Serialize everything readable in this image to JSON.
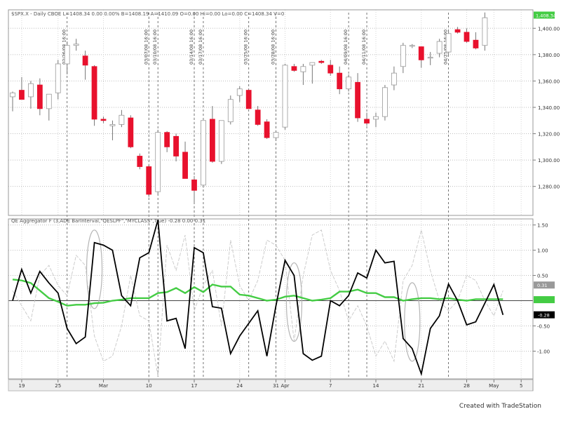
{
  "window": {
    "price_header": "$SPX.X - Daily  CBOE  L=1408.34  0.00  0.00%  B=1408.19  A=1410.09  O=0.00  Hi=0.00  Lo=0.00  C=1408.34  V=0",
    "indicator_header": "QE Aggregator F (3,ADE BarInterval,\"QESLPF\",\"MYCLASS\",True)  -0.28  0.00  0.31",
    "credit": "Created with TradeStation"
  },
  "colors": {
    "up_candle_fill": "#ffffff",
    "up_candle_stroke": "#999999",
    "down_candle_fill": "#e8112d",
    "wick": "#777777",
    "aggregator_line": "#000000",
    "smooth_line": "#44cc44",
    "ghost_line": "#c8c8c8",
    "zero_line": "#444444",
    "price_badge": "#44cc44",
    "value_badge": "#000000"
  },
  "chart_data": [
    {
      "type": "candlestick",
      "title": "$SPX.X - Daily",
      "y_ticks": [
        1400,
        1380,
        1360,
        1340,
        1320,
        1300,
        1280
      ],
      "y_tick_labels": [
        "1,400.00",
        "1,380.00",
        "1,360.00",
        "1,340.00",
        "1,320.00",
        "1,300.00",
        "1,280.00"
      ],
      "ylim": [
        1258,
        1414
      ],
      "last_price_label": "1,408.34",
      "bars": [
        {
          "o": 1348,
          "h": 1352,
          "l": 1337,
          "c": 1351
        },
        {
          "o": 1353,
          "h": 1363,
          "l": 1346,
          "c": 1346
        },
        {
          "o": 1348,
          "h": 1360,
          "l": 1339,
          "c": 1358
        },
        {
          "o": 1357,
          "h": 1362,
          "l": 1334,
          "c": 1339
        },
        {
          "o": 1339,
          "h": 1350,
          "l": 1330,
          "c": 1350
        },
        {
          "o": 1351,
          "h": 1376,
          "l": 1346,
          "c": 1373
        },
        {
          "o": 1373,
          "h": 1390,
          "l": 1365,
          "c": 1387
        },
        {
          "o": 1387,
          "h": 1392,
          "l": 1383,
          "c": 1388
        },
        {
          "o": 1379,
          "h": 1383,
          "l": 1361,
          "c": 1372
        },
        {
          "o": 1371,
          "h": 1372,
          "l": 1326,
          "c": 1331
        },
        {
          "o": 1331,
          "h": 1333,
          "l": 1328,
          "c": 1330
        },
        {
          "o": 1326,
          "h": 1330,
          "l": 1315,
          "c": 1327
        },
        {
          "o": 1327,
          "h": 1338,
          "l": 1325,
          "c": 1334
        },
        {
          "o": 1332,
          "h": 1334,
          "l": 1309,
          "c": 1310
        },
        {
          "o": 1303,
          "h": 1305,
          "l": 1293,
          "c": 1295
        },
        {
          "o": 1295,
          "h": 1296,
          "l": 1272,
          "c": 1274
        },
        {
          "o": 1276,
          "h": 1323,
          "l": 1274,
          "c": 1321
        },
        {
          "o": 1321,
          "h": 1322,
          "l": 1306,
          "c": 1310
        },
        {
          "o": 1318,
          "h": 1320,
          "l": 1299,
          "c": 1303
        },
        {
          "o": 1306,
          "h": 1314,
          "l": 1286,
          "c": 1286
        },
        {
          "o": 1285,
          "h": 1288,
          "l": 1267,
          "c": 1277
        },
        {
          "o": 1281,
          "h": 1330,
          "l": 1279,
          "c": 1330
        },
        {
          "o": 1331,
          "h": 1341,
          "l": 1298,
          "c": 1299
        },
        {
          "o": 1299,
          "h": 1330,
          "l": 1297,
          "c": 1330
        },
        {
          "o": 1329,
          "h": 1349,
          "l": 1327,
          "c": 1346
        },
        {
          "o": 1349,
          "h": 1356,
          "l": 1344,
          "c": 1354
        },
        {
          "o": 1353,
          "h": 1353,
          "l": 1339,
          "c": 1339
        },
        {
          "o": 1338,
          "h": 1341,
          "l": 1326,
          "c": 1327
        },
        {
          "o": 1329,
          "h": 1331,
          "l": 1316,
          "c": 1317
        },
        {
          "o": 1317,
          "h": 1322,
          "l": 1315,
          "c": 1321
        },
        {
          "o": 1325,
          "h": 1373,
          "l": 1323,
          "c": 1372
        },
        {
          "o": 1371,
          "h": 1373,
          "l": 1367,
          "c": 1368
        },
        {
          "o": 1367,
          "h": 1373,
          "l": 1357,
          "c": 1371
        },
        {
          "o": 1372,
          "h": 1374,
          "l": 1358,
          "c": 1374
        },
        {
          "o": 1375,
          "h": 1376,
          "l": 1373,
          "c": 1374
        },
        {
          "o": 1372,
          "h": 1376,
          "l": 1364,
          "c": 1366
        },
        {
          "o": 1366,
          "h": 1371,
          "l": 1350,
          "c": 1354
        },
        {
          "o": 1354,
          "h": 1365,
          "l": 1352,
          "c": 1363
        },
        {
          "o": 1359,
          "h": 1366,
          "l": 1329,
          "c": 1332
        },
        {
          "o": 1331,
          "h": 1336,
          "l": 1326,
          "c": 1328
        },
        {
          "o": 1331,
          "h": 1336,
          "l": 1325,
          "c": 1333
        },
        {
          "o": 1333,
          "h": 1357,
          "l": 1330,
          "c": 1355
        },
        {
          "o": 1357,
          "h": 1371,
          "l": 1353,
          "c": 1366
        },
        {
          "o": 1371,
          "h": 1389,
          "l": 1366,
          "c": 1387
        },
        {
          "o": 1387,
          "h": 1388,
          "l": 1385,
          "c": 1387
        },
        {
          "o": 1386,
          "h": 1386,
          "l": 1370,
          "c": 1376
        },
        {
          "o": 1378,
          "h": 1382,
          "l": 1372,
          "c": 1378
        },
        {
          "o": 1381,
          "h": 1392,
          "l": 1378,
          "c": 1390
        },
        {
          "o": 1382,
          "h": 1398,
          "l": 1379,
          "c": 1396
        },
        {
          "o": 1399,
          "h": 1401,
          "l": 1396,
          "c": 1397
        },
        {
          "o": 1397,
          "h": 1400,
          "l": 1389,
          "c": 1390
        },
        {
          "o": 1391,
          "h": 1397,
          "l": 1384,
          "c": 1385
        },
        {
          "o": 1387,
          "h": 1412,
          "l": 1383,
          "c": 1408
        }
      ],
      "event_markers": [
        {
          "bar": 6,
          "label": "02/26/08 16:00"
        },
        {
          "bar": 15,
          "label": "03/07/08 16:00"
        },
        {
          "bar": 16,
          "label": "03/10/08 16:00"
        },
        {
          "bar": 20,
          "label": "03/14/08 16:00"
        },
        {
          "bar": 21,
          "label": "03/17/08 16:00"
        },
        {
          "bar": 26,
          "label": "03/25/08 16:00"
        },
        {
          "bar": 29,
          "label": "03/28/08 16:00"
        },
        {
          "bar": 37,
          "label": "04/09/08 16:00"
        },
        {
          "bar": 39,
          "label": "04/11/08 16:00"
        },
        {
          "bar": 48,
          "label": "04/25/08 16:00"
        }
      ]
    },
    {
      "type": "line",
      "title": "QE Aggregator F (3,ADE BarInterval,\"QESLPF\",\"MYCLASS\",True)",
      "y_ticks": [
        1.5,
        1.0,
        0.5,
        -0.5,
        -1.0
      ],
      "y_tick_labels": [
        "1.50",
        "1.00",
        "0.50",
        "-0.50",
        "-1.00"
      ],
      "ylim": [
        -1.55,
        1.62
      ],
      "value_labels": [
        "0.31",
        "0.00",
        "-0.28"
      ],
      "x_ticks": [
        {
          "bar": 1,
          "label": "19"
        },
        {
          "bar": 5,
          "label": "25"
        },
        {
          "bar": 10,
          "label": "Mar"
        },
        {
          "bar": 15,
          "label": "10"
        },
        {
          "bar": 20,
          "label": "17"
        },
        {
          "bar": 25,
          "label": "24"
        },
        {
          "bar": 29,
          "label": "31"
        },
        {
          "bar": 30,
          "label": "Apr"
        },
        {
          "bar": 35,
          "label": "7"
        },
        {
          "bar": 40,
          "label": "14"
        },
        {
          "bar": 45,
          "label": "21"
        },
        {
          "bar": 50,
          "label": "28"
        },
        {
          "bar": 53,
          "label": "May"
        },
        {
          "bar": 56,
          "label": "5"
        }
      ],
      "highlighted_bars": [
        9,
        31,
        44
      ],
      "series": [
        {
          "values": [
            0.0,
            0.62,
            0.15,
            0.58,
            0.35,
            0.15,
            -0.55,
            -0.85,
            -0.72,
            1.15,
            1.1,
            1.0,
            0.1,
            -0.1,
            0.85,
            0.95,
            1.6,
            -0.4,
            -0.35,
            -0.95,
            1.05,
            0.95,
            -0.12,
            -0.15,
            -1.05,
            -0.7,
            -0.45,
            -0.2,
            -1.1,
            -0.1,
            0.8,
            0.5,
            -1.05,
            -1.18,
            -1.1,
            0.0,
            -0.1,
            0.1,
            0.55,
            0.45,
            1.0,
            0.75,
            0.78,
            -0.75,
            -0.95,
            -1.45,
            -0.55,
            -0.3,
            0.33,
            0.0,
            -0.48,
            -0.42,
            -0.05,
            0.32,
            -0.28
          ]
        },
        {
          "values": [
            0.42,
            0.4,
            0.35,
            0.2,
            0.05,
            -0.02,
            -0.1,
            -0.08,
            -0.08,
            -0.05,
            -0.04,
            0.0,
            0.02,
            0.05,
            0.05,
            0.05,
            0.15,
            0.17,
            0.25,
            0.15,
            0.27,
            0.17,
            0.32,
            0.28,
            0.28,
            0.12,
            0.1,
            0.05,
            0.0,
            0.02,
            0.08,
            0.1,
            0.05,
            0.0,
            0.02,
            0.05,
            0.18,
            0.18,
            0.22,
            0.15,
            0.15,
            0.07,
            0.07,
            0.0,
            0.03,
            0.05,
            0.05,
            0.03,
            0.05,
            0.02,
            0.0,
            0.03,
            0.03,
            0.03,
            0.03
          ]
        },
        {
          "values": [
            0.2,
            -0.1,
            -0.4,
            0.5,
            0.7,
            0.3,
            0.1,
            0.9,
            0.7,
            -0.7,
            -1.2,
            -1.1,
            -0.5,
            0.5,
            -0.3,
            -0.4,
            -1.5,
            1.1,
            0.6,
            1.3,
            -0.2,
            0.3,
            0.6,
            -0.5,
            1.2,
            0.3,
            0.0,
            0.4,
            1.2,
            1.1,
            0.8,
            -0.8,
            0.5,
            1.3,
            1.4,
            0.6,
            0.2,
            -0.4,
            -0.1,
            -0.5,
            -1.1,
            -0.8,
            -1.2,
            0.4,
            0.7,
            1.4,
            0.6,
            0.0,
            -0.2,
            0.0,
            0.5,
            0.4,
            0.0,
            -0.3,
            0.2
          ]
        }
      ]
    }
  ]
}
